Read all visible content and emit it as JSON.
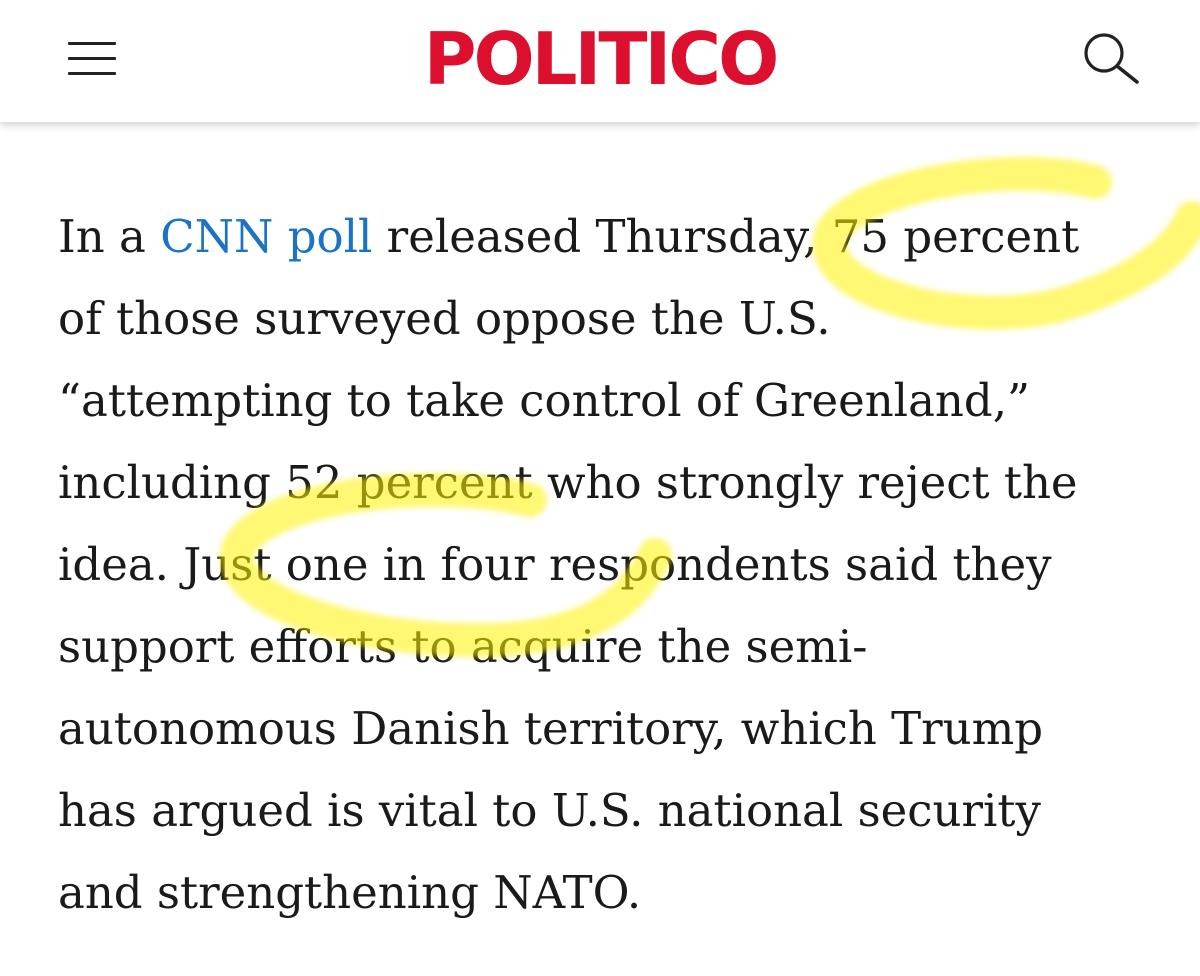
{
  "header": {
    "menu_icon": "hamburger-menu-icon",
    "logo_text": "POLITICO",
    "search_icon": "search-icon",
    "brand_color": "#dc0f2f"
  },
  "article": {
    "link_text": "CNN poll",
    "link_color": "#1a73c4",
    "lines": [
      {
        "before": "In a ",
        "after": " released Thursday, 75 percent"
      },
      {
        "text": "of those surveyed oppose the U.S."
      },
      {
        "text": "“attempting to take control of Greenland,”"
      },
      {
        "text": "including 52 percent who strongly reject the"
      },
      {
        "text": "idea. Just one in four respondents said they"
      },
      {
        "text": "support efforts to acquire the semi-"
      },
      {
        "text": "autonomous Danish territory, which Trump"
      },
      {
        "text": "has argued is vital to U.S. national security"
      },
      {
        "text": "and strengthening NATO."
      }
    ]
  },
  "annotations": {
    "highlight_color": "#fff200"
  }
}
